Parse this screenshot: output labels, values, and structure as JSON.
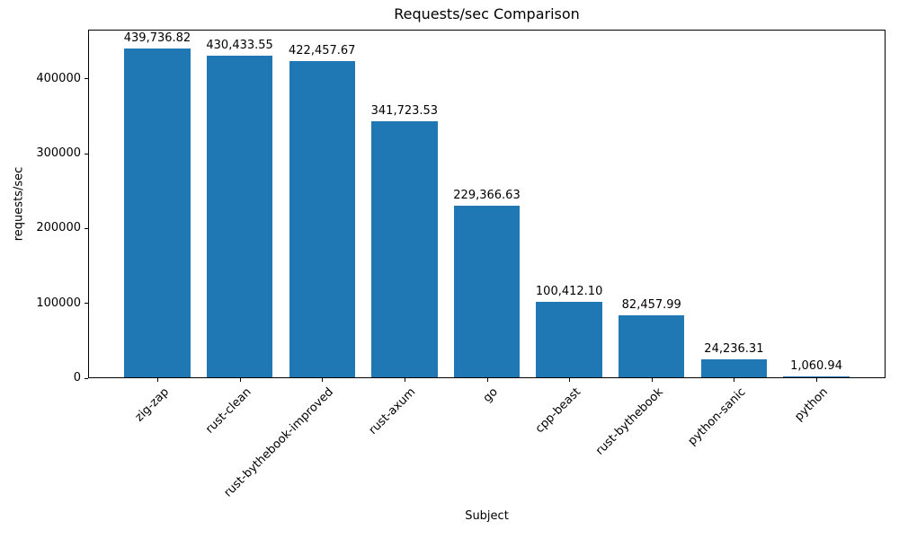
{
  "chart_data": {
    "type": "bar",
    "title": "Requests/sec Comparison",
    "xlabel": "Subject",
    "ylabel": "requests/sec",
    "categories": [
      "zig-zap",
      "rust-clean",
      "rust-bythebook-improved",
      "rust-axum",
      "go",
      "cpp-beast",
      "rust-bythebook",
      "python-sanic",
      "python"
    ],
    "values": [
      439736.82,
      430433.55,
      422457.67,
      341723.53,
      229366.63,
      100412.1,
      82457.99,
      24236.31,
      1060.94
    ],
    "value_labels": [
      "439,736.82",
      "430,433.55",
      "422,457.67",
      "341,723.53",
      "229,366.63",
      "100,412.10",
      "82,457.99",
      "24,236.31",
      "1,060.94"
    ],
    "y_ticks": [
      0,
      100000,
      200000,
      300000,
      400000
    ],
    "y_tick_labels": [
      "0",
      "100000",
      "200000",
      "300000",
      "400000"
    ],
    "ylim": [
      0,
      466000
    ],
    "bar_color": "#1f77b4",
    "grid": false,
    "legend": false
  }
}
